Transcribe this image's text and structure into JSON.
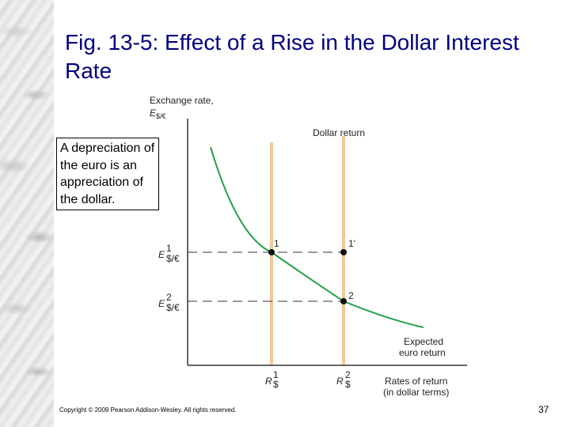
{
  "title": "Fig. 13-5: Effect of a Rise in the Dollar Interest Rate",
  "callout": "A depreciation of the euro is an appreciation of the dollar.",
  "diagram": {
    "y_axis_label_line1": "Exchange rate,",
    "y_axis_symbol": "E",
    "y_axis_sub": "$/€",
    "x_axis_label_line1": "Rates of return",
    "x_axis_label_line2": "(in dollar terms)",
    "dollar_return_label": "Dollar return",
    "expected_euro_line1": "Expected",
    "expected_euro_line2": "euro return",
    "e1_symbol": "E",
    "e1_sup": "1",
    "e1_sub": "$/€",
    "e2_symbol": "E",
    "e2_sup": "2",
    "e2_sub": "$/€",
    "r1_symbol": "R",
    "r1_sup": "1",
    "r1_sub": "$",
    "r2_symbol": "R",
    "r2_sup": "2",
    "r2_sub": "$",
    "point1_label": "1",
    "point1p_label": "1'",
    "point2_label": "2",
    "colors": {
      "curve": "#22a04a",
      "vertical_lines": "#f2c99a",
      "axes": "#333333",
      "title": "#000080"
    }
  },
  "copyright": "Copyright © 2009 Pearson Addison-Wesley. All rights reserved.",
  "slide_number": "37"
}
